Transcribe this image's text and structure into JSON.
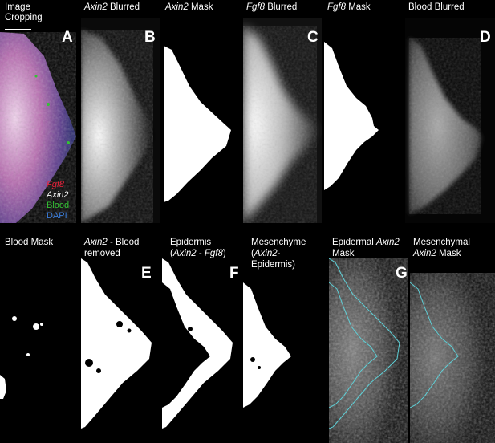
{
  "top_row": {
    "panel_a": {
      "title_line1": "Image",
      "title_line2": "Cropping",
      "letter": "A",
      "legend": [
        {
          "label": "Fgf8",
          "italic": true,
          "color": "#e8203a"
        },
        {
          "label": "Axin2",
          "italic": true,
          "color": "#ffffff"
        },
        {
          "label": "Blood",
          "italic": false,
          "color": "#34c134"
        },
        {
          "label": "DAPI",
          "italic": false,
          "color": "#3a7bd8"
        }
      ]
    },
    "axin2_blurred": {
      "title_gene": "Axin2",
      "title_rest": " Blurred",
      "letter": "B"
    },
    "axin2_mask": {
      "title_gene": "Axin2",
      "title_rest": " Mask"
    },
    "fgf8_blurred": {
      "title_gene": "Fgf8",
      "title_rest": " Blurred",
      "letter": "C"
    },
    "fgf8_mask": {
      "title_gene": "Fgf8",
      "title_rest": " Mask"
    },
    "blood_blurred": {
      "title": "Blood Blurred",
      "letter": "D"
    }
  },
  "bottom_row": {
    "blood_mask": {
      "title": "Blood Mask"
    },
    "axin2_blood_removed": {
      "title_gene": "Axin2",
      "title_rest": " - Blood",
      "title_line2": "removed",
      "letter": "E"
    },
    "epidermis": {
      "title_line1": "Epidermis",
      "title_open": "(",
      "title_gene1": "Axin2",
      "title_mid": " - ",
      "title_gene2": "Fgf8",
      "title_close": ")",
      "letter": "F"
    },
    "mesenchyme": {
      "title_line1": "Mesenchyme",
      "title_open": "(",
      "title_gene": "Axin2",
      "title_rest": "-",
      "title_line3": "Epidermis)"
    },
    "epidermal_axin2_mask": {
      "title_pre": "Epidermal ",
      "title_gene": "Axin2",
      "title_line2": "Mask",
      "letter": "G"
    },
    "mesenchymal_axin2_mask": {
      "title_line1": "Mesenchymal",
      "title_gene": "Axin2",
      "title_rest": " Mask"
    }
  },
  "colors": {
    "background": "#000000",
    "mask": "#ffffff",
    "outline": "#5ecfd6",
    "text": "#ffffff"
  }
}
